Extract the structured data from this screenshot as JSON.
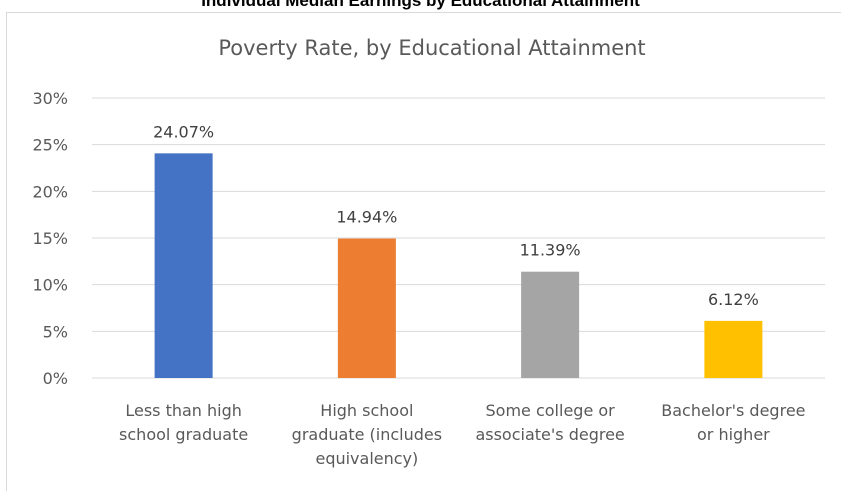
{
  "header": {
    "cut_title": "Individual Median Earnings by Educational Attainment"
  },
  "chart_data": {
    "type": "bar",
    "title": "Poverty Rate, by Educational Attainment",
    "categories": [
      "Less than high school graduate",
      "High school graduate (includes equivalency)",
      "Some college or associate's degree",
      "Bachelor's degree or higher"
    ],
    "category_lines": [
      [
        "Less than high",
        "school graduate"
      ],
      [
        "High school",
        "graduate (includes",
        "equivalency)"
      ],
      [
        "Some college or",
        "associate's degree"
      ],
      [
        "Bachelor's degree",
        "or higher"
      ]
    ],
    "values": [
      24.07,
      14.94,
      11.39,
      6.12
    ],
    "data_labels": [
      "24.07%",
      "14.94%",
      "11.39%",
      "6.12%"
    ],
    "bar_colors": [
      "#4472c4",
      "#ed7d31",
      "#a5a5a5",
      "#ffc000"
    ],
    "ylim": [
      0,
      30
    ],
    "yticks": [
      0,
      5,
      10,
      15,
      20,
      25,
      30
    ],
    "ytick_labels": [
      "0%",
      "5%",
      "10%",
      "15%",
      "20%",
      "25%",
      "30%"
    ],
    "grid": true,
    "legend": "none",
    "xlabel": "",
    "ylabel": ""
  }
}
